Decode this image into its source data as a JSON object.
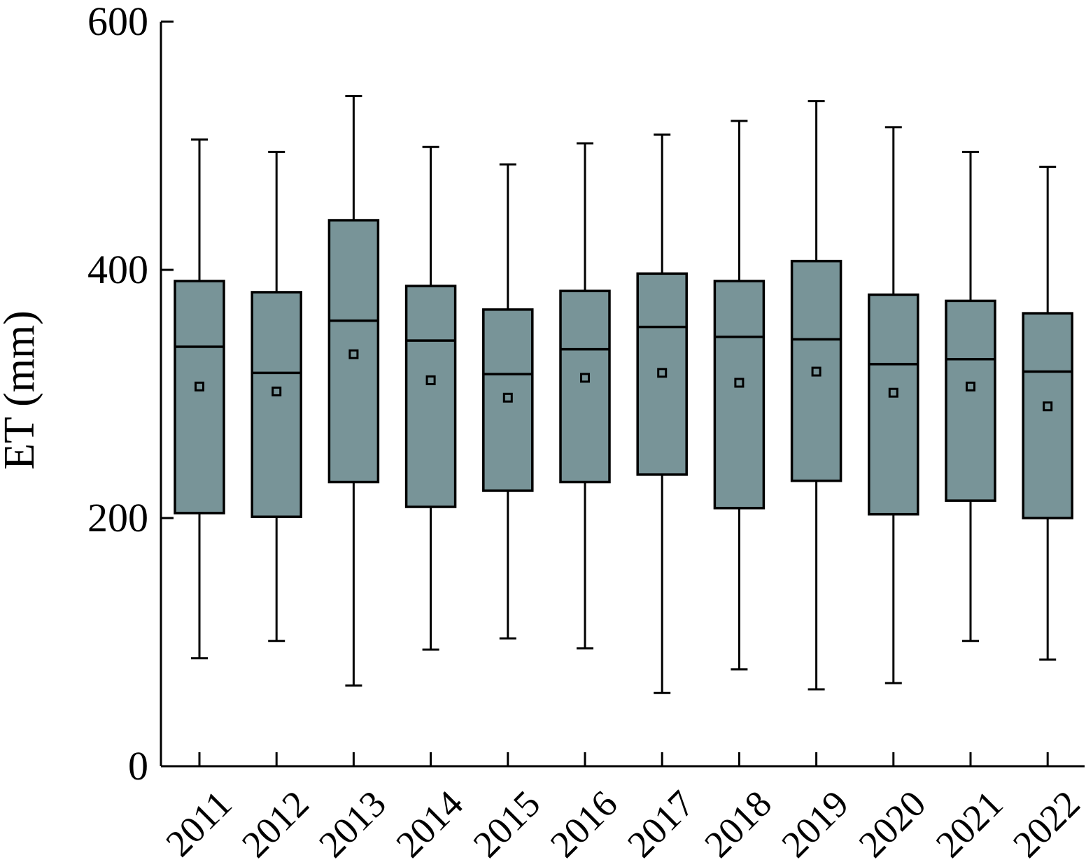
{
  "chart_data": {
    "type": "box",
    "ylabel": "ET (mm)",
    "xlabel": "",
    "ylim": [
      0,
      600
    ],
    "yticks": [
      0,
      200,
      400,
      600
    ],
    "categories": [
      "2011",
      "2012",
      "2013",
      "2014",
      "2015",
      "2016",
      "2017",
      "2018",
      "2019",
      "2020",
      "2021",
      "2022"
    ],
    "boxes": [
      {
        "min": 87,
        "q1": 204,
        "median": 338,
        "q3": 391,
        "max": 505,
        "mean": 306
      },
      {
        "min": 101,
        "q1": 201,
        "median": 317,
        "q3": 382,
        "max": 495,
        "mean": 302
      },
      {
        "min": 65,
        "q1": 229,
        "median": 359,
        "q3": 440,
        "max": 540,
        "mean": 332
      },
      {
        "min": 94,
        "q1": 209,
        "median": 343,
        "q3": 387,
        "max": 499,
        "mean": 311
      },
      {
        "min": 103,
        "q1": 222,
        "median": 316,
        "q3": 368,
        "max": 485,
        "mean": 297
      },
      {
        "min": 95,
        "q1": 229,
        "median": 336,
        "q3": 383,
        "max": 502,
        "mean": 313
      },
      {
        "min": 59,
        "q1": 235,
        "median": 354,
        "q3": 397,
        "max": 509,
        "mean": 317
      },
      {
        "min": 78,
        "q1": 208,
        "median": 346,
        "q3": 391,
        "max": 520,
        "mean": 309
      },
      {
        "min": 62,
        "q1": 230,
        "median": 344,
        "q3": 407,
        "max": 536,
        "mean": 318
      },
      {
        "min": 67,
        "q1": 203,
        "median": 324,
        "q3": 380,
        "max": 515,
        "mean": 301
      },
      {
        "min": 101,
        "q1": 214,
        "median": 328,
        "q3": 375,
        "max": 495,
        "mean": 306
      },
      {
        "min": 86,
        "q1": 200,
        "median": 318,
        "q3": 365,
        "max": 483,
        "mean": 290
      }
    ],
    "grid": false,
    "colors": {
      "box_fill": "#789498",
      "stroke": "#000000"
    }
  }
}
